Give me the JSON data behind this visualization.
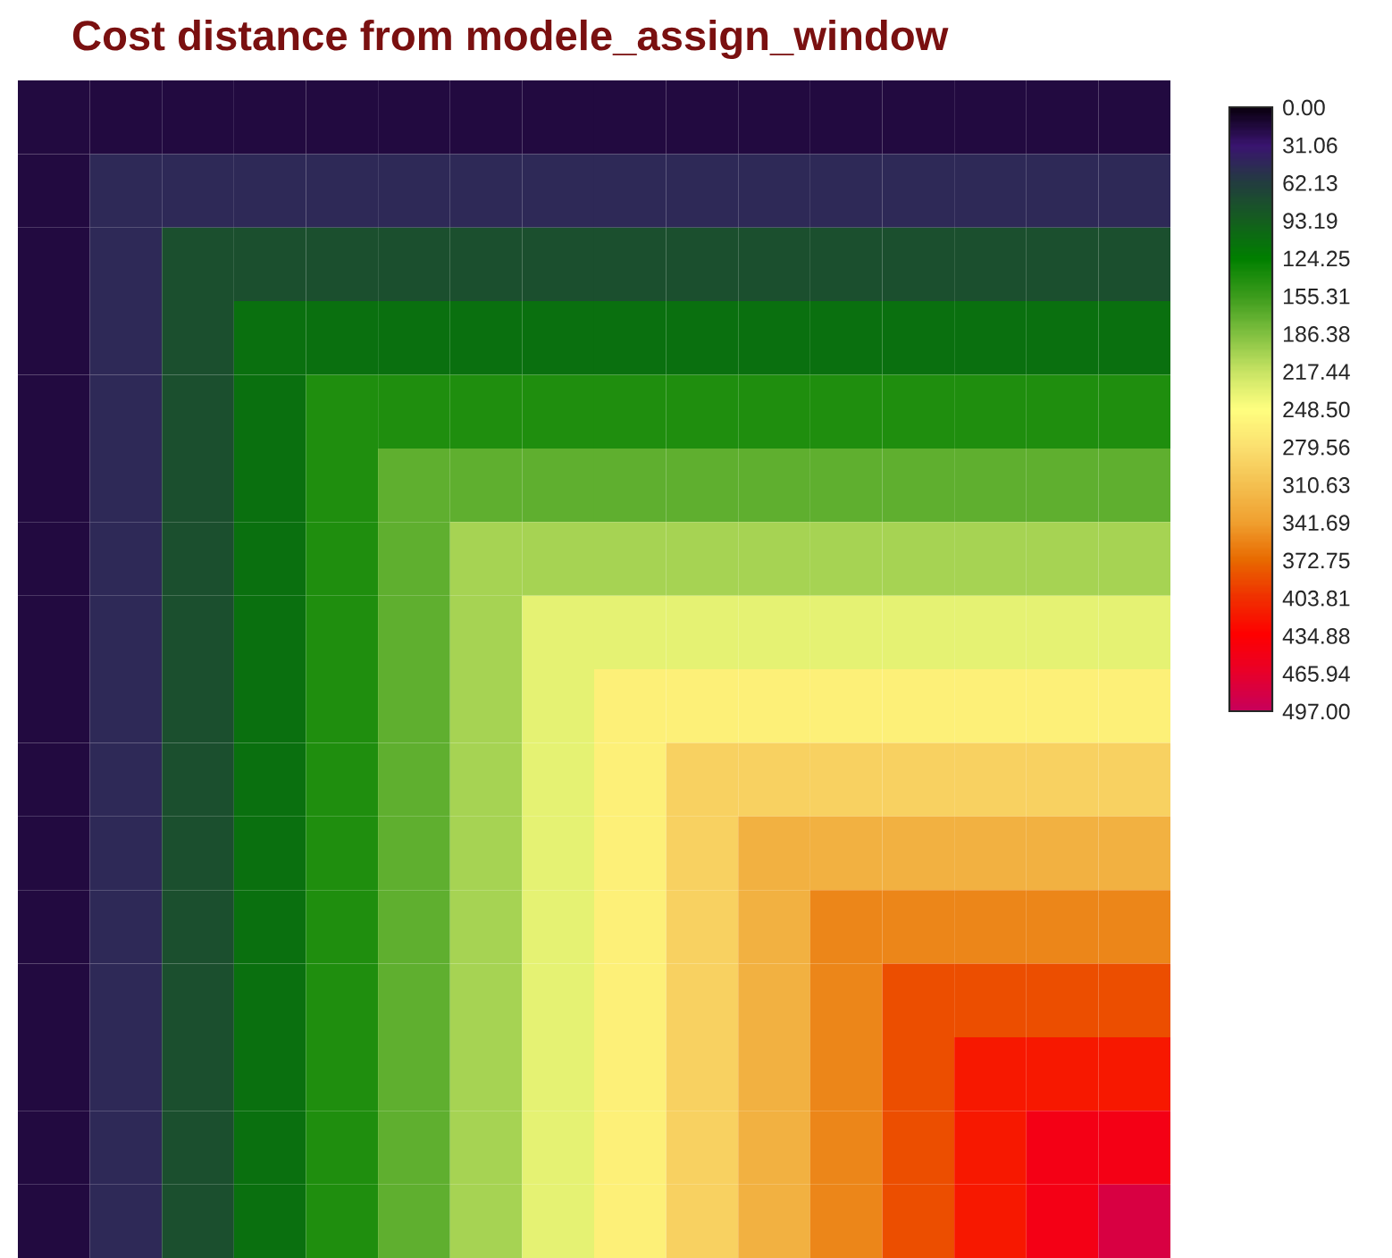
{
  "chart_data": {
    "type": "heatmap",
    "title": "Cost distance from modele_assign_window",
    "categories": [
      null,
      null,
      null,
      null,
      null,
      null,
      null,
      null,
      null,
      null,
      null,
      null,
      null,
      null,
      null,
      null
    ],
    "y_categories": [
      null,
      null,
      null,
      null,
      null,
      null,
      null,
      null,
      null,
      null,
      null,
      null,
      null,
      null,
      null,
      null
    ],
    "cells": [
      [
        16,
        16,
        16,
        16,
        16,
        16,
        16,
        16,
        16,
        16,
        16,
        16,
        16,
        16,
        16,
        16
      ],
      [
        16,
        47,
        47,
        47,
        47,
        47,
        47,
        47,
        47,
        47,
        47,
        47,
        47,
        47,
        47,
        47
      ],
      [
        16,
        47,
        78,
        78,
        78,
        78,
        78,
        78,
        78,
        78,
        78,
        78,
        78,
        78,
        78,
        78
      ],
      [
        16,
        47,
        78,
        109,
        109,
        109,
        109,
        109,
        109,
        109,
        109,
        109,
        109,
        109,
        109,
        109
      ],
      [
        16,
        47,
        78,
        109,
        140,
        140,
        140,
        140,
        140,
        140,
        140,
        140,
        140,
        140,
        140,
        140
      ],
      [
        16,
        47,
        78,
        109,
        140,
        171,
        171,
        171,
        171,
        171,
        171,
        171,
        171,
        171,
        171,
        171
      ],
      [
        16,
        47,
        78,
        109,
        140,
        171,
        202,
        202,
        202,
        202,
        202,
        202,
        202,
        202,
        202,
        202
      ],
      [
        16,
        47,
        78,
        109,
        140,
        171,
        202,
        233,
        233,
        233,
        233,
        233,
        233,
        233,
        233,
        233
      ],
      [
        16,
        47,
        78,
        109,
        140,
        171,
        202,
        233,
        264,
        264,
        264,
        264,
        264,
        264,
        264,
        264
      ],
      [
        16,
        47,
        78,
        109,
        140,
        171,
        202,
        233,
        264,
        295,
        295,
        295,
        295,
        295,
        295,
        295
      ],
      [
        16,
        47,
        78,
        109,
        140,
        171,
        202,
        233,
        264,
        295,
        326,
        326,
        326,
        326,
        326,
        326
      ],
      [
        16,
        47,
        78,
        109,
        140,
        171,
        202,
        233,
        264,
        295,
        326,
        357,
        357,
        357,
        357,
        357
      ],
      [
        16,
        47,
        78,
        109,
        140,
        171,
        202,
        233,
        264,
        295,
        326,
        357,
        388,
        388,
        388,
        388
      ],
      [
        16,
        47,
        78,
        109,
        140,
        171,
        202,
        233,
        264,
        295,
        326,
        357,
        388,
        419,
        419,
        419
      ],
      [
        16,
        47,
        78,
        109,
        140,
        171,
        202,
        233,
        264,
        295,
        326,
        357,
        388,
        419,
        450,
        450
      ],
      [
        16,
        47,
        78,
        109,
        140,
        171,
        202,
        233,
        264,
        295,
        326,
        357,
        388,
        419,
        450,
        481
      ]
    ],
    "clim": [
      0,
      497
    ],
    "cticks": [
      {
        "value": 0,
        "label": "0.00"
      },
      {
        "value": 31.06,
        "label": "31.06"
      },
      {
        "value": 62.13,
        "label": "62.13"
      },
      {
        "value": 93.19,
        "label": "93.19"
      },
      {
        "value": 124.25,
        "label": "124.25"
      },
      {
        "value": 155.31,
        "label": "155.31"
      },
      {
        "value": 186.38,
        "label": "186.38"
      },
      {
        "value": 217.44,
        "label": "217.44"
      },
      {
        "value": 248.5,
        "label": "248.50"
      },
      {
        "value": 279.56,
        "label": "279.56"
      },
      {
        "value": 310.63,
        "label": "310.63"
      },
      {
        "value": 341.69,
        "label": "341.69"
      },
      {
        "value": 372.75,
        "label": "372.75"
      },
      {
        "value": 403.81,
        "label": "403.81"
      },
      {
        "value": 434.88,
        "label": "434.88"
      },
      {
        "value": 465.94,
        "label": "465.94"
      },
      {
        "value": 497,
        "label": "497.00"
      }
    ]
  }
}
